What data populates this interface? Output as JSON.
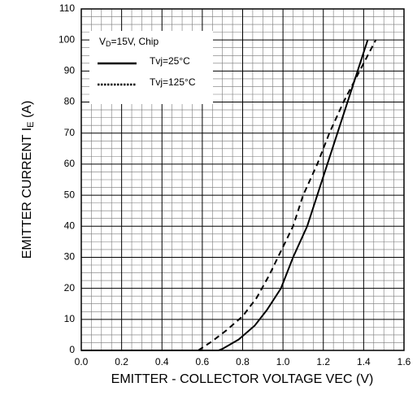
{
  "chart_data": {
    "type": "line",
    "xlabel": "EMITTER - COLLECTOR VOLTAGE VEC (V)",
    "ylabel": {
      "main": "EMITTER CURRENT I",
      "sub": "E",
      "suffix": " (A)"
    },
    "legend_title": {
      "main": "V",
      "sub": "D",
      "suffix": "=15V, Chip"
    },
    "xlim": [
      0,
      1.6
    ],
    "ylim": [
      0,
      110
    ],
    "xticks": [
      {
        "value": 0,
        "label": "0.0"
      },
      0.2,
      0.4,
      0.6,
      0.8,
      {
        "value": 1,
        "label": "1.0"
      },
      1.2,
      1.4,
      1.6
    ],
    "yticks": [
      0,
      10,
      20,
      30,
      40,
      50,
      60,
      70,
      80,
      90,
      100,
      110
    ],
    "grid": true,
    "minor_divisions": 4,
    "legend": "upper-left",
    "series": [
      {
        "name": "Tvj=25°C",
        "color": "#000000",
        "dash": "solid",
        "x": [
          0,
          0.68,
          0.7,
          0.78,
          0.86,
          0.92,
          0.99,
          1.05,
          1.12,
          1.17,
          1.22,
          1.27,
          1.32,
          1.37,
          1.42
        ],
        "values": [
          0,
          0,
          0.5,
          3.5,
          8,
          13,
          20,
          30,
          40,
          50,
          60,
          70,
          80,
          90,
          100
        ]
      },
      {
        "name": "Tvj=125°C",
        "color": "#000000",
        "dash": "dashed",
        "x": [
          0.58,
          0.65,
          0.72,
          0.8,
          0.87,
          0.93,
          0.99,
          1.05,
          1.1,
          1.17,
          1.23,
          1.3,
          1.38,
          1.46
        ],
        "values": [
          0,
          3,
          6.5,
          11,
          17,
          24,
          32,
          40,
          50,
          60,
          70,
          80,
          90,
          100
        ]
      }
    ]
  }
}
